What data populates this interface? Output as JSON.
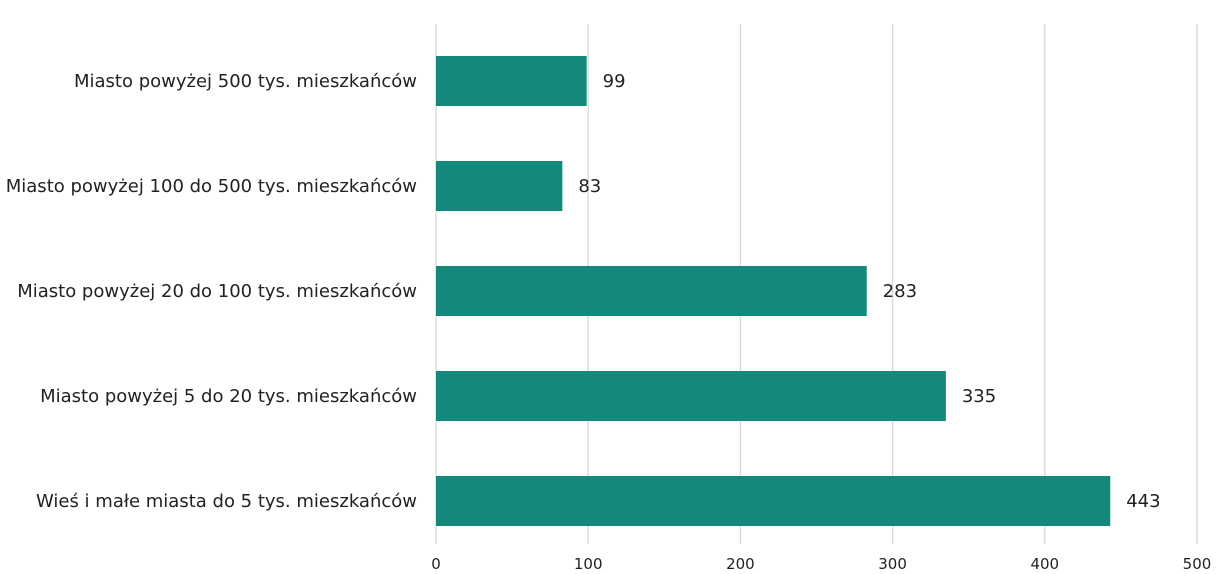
{
  "chart_data": {
    "type": "bar",
    "orientation": "horizontal",
    "categories": [
      "Miasto powyżej 500 tys. mieszkańców",
      "Miasto powyżej 100 do 500 tys. mieszkańców",
      "Miasto powyżej 20 do 100 tys. mieszkańców",
      "Miasto powyżej 5 do 20 tys. mieszkańców",
      "Wieś i małe miasta do 5 tys. mieszkańców"
    ],
    "values": [
      99,
      83,
      283,
      335,
      443
    ],
    "xlim": [
      0,
      500
    ],
    "x_ticks": [
      0,
      100,
      200,
      300,
      400,
      500
    ],
    "x_tick_labels": [
      "0",
      "100",
      "200",
      "300",
      "400",
      "500"
    ],
    "grid": true,
    "legend": "none",
    "bar_color": "#13897c",
    "title": "",
    "xlabel": "",
    "ylabel": ""
  }
}
